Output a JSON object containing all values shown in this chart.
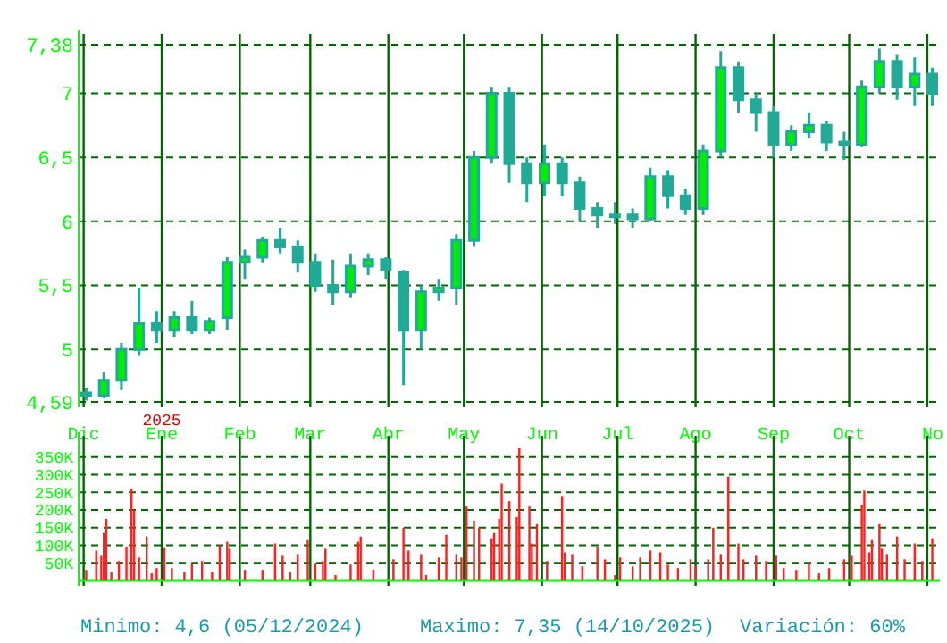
{
  "chart_data": [
    {
      "type": "candlestick",
      "color": "#22aa99",
      "annotations": [
        "2025"
      ],
      "xlim": [
        "2024-11-29",
        "2025-11-06"
      ],
      "ylim": [
        4.59,
        7.38
      ],
      "yticks": [
        {
          "value": 4.59,
          "label": "4,59"
        },
        5,
        {
          "value": 5.5,
          "label": "5,5"
        },
        6,
        {
          "value": 6.5,
          "label": "6,5"
        },
        7,
        {
          "value": 7.38,
          "label": "7,38"
        }
      ],
      "xticks": [
        {
          "value": "2024-12-01",
          "label": "Dic"
        },
        {
          "value": "2025-01-01",
          "label": "Ene"
        },
        {
          "value": "2025-02-01",
          "label": "Feb"
        },
        {
          "value": "2025-03-01",
          "label": "Mar"
        },
        {
          "value": "2025-04-01",
          "label": "Abr"
        },
        {
          "value": "2025-05-01",
          "label": "May"
        },
        {
          "value": "2025-06-01",
          "label": "Jun"
        },
        {
          "value": "2025-07-01",
          "label": "Jul"
        },
        {
          "value": "2025-08-01",
          "label": "Ago"
        },
        {
          "value": "2025-09-01",
          "label": "Sep"
        },
        {
          "value": "2025-10-01",
          "label": "Oct"
        },
        {
          "value": "2025-11-01",
          "label": "No"
        }
      ],
      "grid": true,
      "x": [
        "2024-12-02",
        "2024-12-09",
        "2024-12-16",
        "2024-12-23",
        "2024-12-30",
        "2025-01-06",
        "2025-01-13",
        "2025-01-20",
        "2025-01-27",
        "2025-02-03",
        "2025-02-10",
        "2025-02-17",
        "2025-02-24",
        "2025-03-03",
        "2025-03-10",
        "2025-03-17",
        "2025-03-24",
        "2025-03-31",
        "2025-04-07",
        "2025-04-14",
        "2025-04-21",
        "2025-04-28",
        "2025-05-05",
        "2025-05-12",
        "2025-05-19",
        "2025-05-26",
        "2025-06-02",
        "2025-06-09",
        "2025-06-16",
        "2025-06-23",
        "2025-06-30",
        "2025-07-07",
        "2025-07-14",
        "2025-07-21",
        "2025-07-28",
        "2025-08-04",
        "2025-08-11",
        "2025-08-18",
        "2025-08-25",
        "2025-09-01",
        "2025-09-08",
        "2025-09-15",
        "2025-09-22",
        "2025-09-29",
        "2025-10-06",
        "2025-10-13",
        "2025-10-20",
        "2025-10-27",
        "2025-11-03"
      ],
      "ohlc": [
        [
          4.66,
          4.7,
          4.6,
          4.64
        ],
        [
          4.64,
          4.82,
          4.62,
          4.76
        ],
        [
          4.76,
          5.05,
          4.68,
          5.0
        ],
        [
          5.0,
          5.48,
          4.95,
          5.2
        ],
        [
          5.2,
          5.3,
          5.05,
          5.15
        ],
        [
          5.15,
          5.3,
          5.1,
          5.25
        ],
        [
          5.25,
          5.38,
          5.12,
          5.15
        ],
        [
          5.15,
          5.25,
          5.12,
          5.22
        ],
        [
          5.25,
          5.72,
          5.15,
          5.68
        ],
        [
          5.68,
          5.78,
          5.55,
          5.72
        ],
        [
          5.72,
          5.88,
          5.68,
          5.85
        ],
        [
          5.85,
          5.95,
          5.75,
          5.8
        ],
        [
          5.8,
          5.85,
          5.6,
          5.68
        ],
        [
          5.68,
          5.75,
          5.45,
          5.5
        ],
        [
          5.5,
          5.7,
          5.35,
          5.45
        ],
        [
          5.45,
          5.75,
          5.4,
          5.65
        ],
        [
          5.65,
          5.75,
          5.58,
          5.7
        ],
        [
          5.7,
          5.72,
          5.55,
          5.62
        ],
        [
          5.6,
          5.62,
          4.72,
          5.15
        ],
        [
          5.15,
          5.5,
          5.0,
          5.45
        ],
        [
          5.45,
          5.55,
          5.38,
          5.48
        ],
        [
          5.48,
          5.9,
          5.35,
          5.85
        ],
        [
          5.85,
          6.55,
          5.8,
          6.5
        ],
        [
          6.5,
          7.05,
          6.45,
          7.0
        ],
        [
          7.0,
          7.05,
          6.3,
          6.45
        ],
        [
          6.45,
          6.5,
          6.15,
          6.3
        ],
        [
          6.3,
          6.6,
          6.2,
          6.45
        ],
        [
          6.45,
          6.5,
          6.2,
          6.3
        ],
        [
          6.3,
          6.35,
          6.0,
          6.1
        ],
        [
          6.1,
          6.15,
          5.95,
          6.05
        ],
        [
          6.05,
          6.15,
          5.98,
          6.05
        ],
        [
          6.05,
          6.1,
          5.95,
          6.02
        ],
        [
          6.02,
          6.42,
          6.0,
          6.35
        ],
        [
          6.35,
          6.4,
          6.1,
          6.2
        ],
        [
          6.2,
          6.25,
          6.05,
          6.1
        ],
        [
          6.1,
          6.6,
          6.05,
          6.55
        ],
        [
          6.55,
          7.33,
          6.5,
          7.2
        ],
        [
          7.2,
          7.25,
          6.85,
          6.95
        ],
        [
          6.95,
          7.0,
          6.7,
          6.85
        ],
        [
          6.85,
          6.9,
          6.5,
          6.6
        ],
        [
          6.6,
          6.75,
          6.55,
          6.7
        ],
        [
          6.7,
          6.85,
          6.65,
          6.75
        ],
        [
          6.75,
          6.78,
          6.55,
          6.62
        ],
        [
          6.62,
          6.7,
          6.48,
          6.6
        ],
        [
          6.6,
          7.1,
          6.58,
          7.05
        ],
        [
          7.05,
          7.35,
          7.0,
          7.25
        ],
        [
          7.25,
          7.3,
          6.95,
          7.05
        ],
        [
          7.05,
          7.28,
          6.9,
          7.15
        ],
        [
          7.15,
          7.2,
          6.9,
          7.0
        ]
      ]
    },
    {
      "type": "bar",
      "color": "#ff2020",
      "tick_labels": "y",
      "grid": true,
      "annotations": [
        "Minimo: 4,6 (05/12/2024)",
        "Maximo: 7,35 (14/10/2025)",
        "Variación: 60%"
      ],
      "xlim": [
        "2024-11-29",
        "2025-11-06"
      ],
      "ylim": [
        0,
        380000
      ],
      "yticks": [
        {
          "value": 50000,
          "label": "50K"
        },
        {
          "value": 100000,
          "label": "100K"
        },
        {
          "value": 150000,
          "label": "150K"
        },
        {
          "value": 200000,
          "label": "200K"
        },
        {
          "value": 250000,
          "label": "250K"
        },
        {
          "value": 300000,
          "label": "300K"
        },
        {
          "value": 350000,
          "label": "350K"
        }
      ],
      "xticks": [
        {
          "value": "2024-12-01",
          "label": null
        },
        {
          "value": "2025-01-01",
          "label": null
        },
        {
          "value": "2025-02-01",
          "label": null
        },
        {
          "value": "2025-03-01",
          "label": null
        },
        {
          "value": "2025-04-01",
          "label": null
        },
        {
          "value": "2025-05-01",
          "label": null
        },
        {
          "value": "2025-06-01",
          "label": null
        },
        {
          "value": "2025-07-01",
          "label": null
        },
        {
          "value": "2025-08-01",
          "label": null
        },
        {
          "value": "2025-09-01",
          "label": null
        },
        {
          "value": "2025-10-01",
          "label": null
        },
        {
          "value": "2025-11-01",
          "label": null
        }
      ],
      "x": [
        "2024-12-02",
        "2024-12-06",
        "2024-12-08",
        "2024-12-09",
        "2024-12-10",
        "2024-12-12",
        "2024-12-15",
        "2024-12-18",
        "2024-12-20",
        "2024-12-21",
        "2024-12-23",
        "2024-12-26",
        "2024-12-28",
        "2024-12-30",
        "2025-01-02",
        "2025-01-05",
        "2025-01-10",
        "2025-01-13",
        "2025-01-17",
        "2025-01-21",
        "2025-01-24",
        "2025-01-27",
        "2025-01-28",
        "2025-02-03",
        "2025-02-10",
        "2025-02-15",
        "2025-02-18",
        "2025-02-21",
        "2025-02-24",
        "2025-02-28",
        "2025-03-03",
        "2025-03-06",
        "2025-03-07",
        "2025-03-11",
        "2025-03-17",
        "2025-03-20",
        "2025-03-21",
        "2025-03-26",
        "2025-04-03",
        "2025-04-07",
        "2025-04-09",
        "2025-04-14",
        "2025-04-16",
        "2025-04-21",
        "2025-04-24",
        "2025-04-28",
        "2025-04-30",
        "2025-05-02",
        "2025-05-05",
        "2025-05-07",
        "2025-05-12",
        "2025-05-13",
        "2025-05-15",
        "2025-05-16",
        "2025-05-19",
        "2025-05-22",
        "2025-05-23",
        "2025-05-27",
        "2025-05-28",
        "2025-05-30",
        "2025-06-03",
        "2025-06-09",
        "2025-06-10",
        "2025-06-13",
        "2025-06-17",
        "2025-06-23",
        "2025-06-26",
        "2025-06-30",
        "2025-07-02",
        "2025-07-07",
        "2025-07-10",
        "2025-07-14",
        "2025-07-18",
        "2025-07-21",
        "2025-07-25",
        "2025-07-30",
        "2025-08-01",
        "2025-08-06",
        "2025-08-08",
        "2025-08-11",
        "2025-08-14",
        "2025-08-18",
        "2025-08-20",
        "2025-08-25",
        "2025-08-29",
        "2025-09-02",
        "2025-09-05",
        "2025-09-10",
        "2025-09-15",
        "2025-09-19",
        "2025-09-23",
        "2025-09-29",
        "2025-10-02",
        "2025-10-06",
        "2025-10-07",
        "2025-10-09",
        "2025-10-10",
        "2025-10-13",
        "2025-10-14",
        "2025-10-16",
        "2025-10-20",
        "2025-10-23",
        "2025-10-27",
        "2025-10-30",
        "2025-11-03"
      ],
      "values": [
        30000,
        85000,
        70000,
        135000,
        175000,
        25000,
        55000,
        95000,
        260000,
        200000,
        65000,
        125000,
        20000,
        35000,
        92000,
        35000,
        25000,
        50000,
        55000,
        25000,
        100000,
        110000,
        90000,
        30000,
        30000,
        105000,
        70000,
        25000,
        75000,
        115000,
        50000,
        55000,
        90000,
        15000,
        45000,
        110000,
        125000,
        30000,
        60000,
        150000,
        85000,
        75000,
        15000,
        65000,
        130000,
        75000,
        65000,
        210000,
        170000,
        150000,
        120000,
        135000,
        175000,
        275000,
        225000,
        180000,
        375000,
        210000,
        105000,
        160000,
        55000,
        240000,
        80000,
        75000,
        40000,
        95000,
        60000,
        15000,
        65000,
        40000,
        65000,
        85000,
        80000,
        45000,
        35000,
        60000,
        40000,
        60000,
        150000,
        75000,
        295000,
        105000,
        60000,
        70000,
        55000,
        70000,
        35000,
        30000,
        50000,
        20000,
        35000,
        60000,
        70000,
        215000,
        255000,
        80000,
        115000,
        160000,
        90000,
        75000,
        125000,
        60000,
        105000,
        55000,
        120000
      ]
    }
  ]
}
